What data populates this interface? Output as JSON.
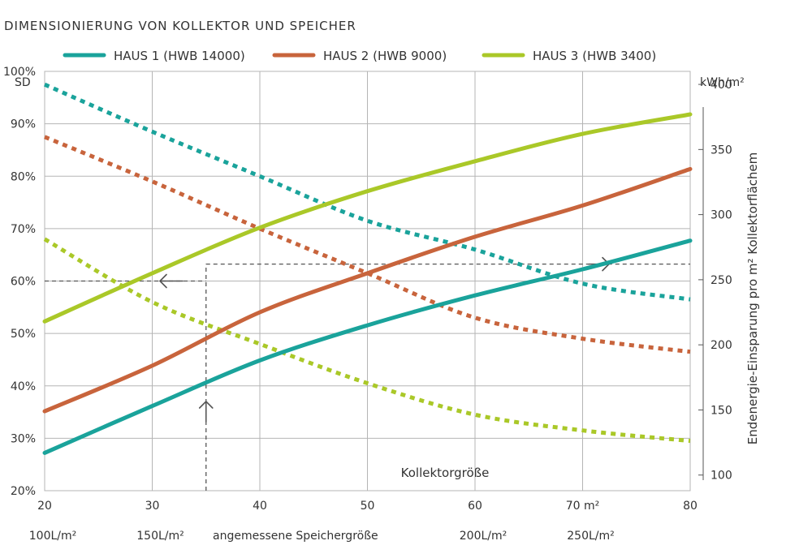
{
  "chart_data": {
    "type": "line",
    "title": "DIMENSIONIERUNG VON KOLLEKTOR UND SPEICHER",
    "x": [
      20,
      30,
      40,
      50,
      60,
      70,
      80
    ],
    "x_tick_labels": [
      "20",
      "30",
      "40",
      "50",
      "60",
      "70 m²",
      "80"
    ],
    "xlim": [
      20,
      80
    ],
    "xlabel": "Kollektorgröße",
    "x2_labels": [
      {
        "x": 20,
        "text": "100L/m²"
      },
      {
        "x": 30,
        "text": "150L/m²"
      },
      {
        "x": 40,
        "text": "angemessene Speichergröße"
      },
      {
        "x": 60,
        "text": "200L/m²"
      },
      {
        "x": 70,
        "text": "250L/m²"
      }
    ],
    "ylabel": "SD",
    "ylim": [
      20,
      100
    ],
    "y_ticks": [
      20,
      30,
      40,
      50,
      60,
      70,
      80,
      90,
      100
    ],
    "y_tick_labels": [
      "20%",
      "30%",
      "40%",
      "50%",
      "60%",
      "70%",
      "80%",
      "90%",
      "100%"
    ],
    "y2label_unit": "kWh/m²",
    "y2label": "Endenergie-Einsparung pro m² Kollektorflächem",
    "y2lim": [
      88,
      410
    ],
    "y2_ticks": [
      100,
      150,
      200,
      250,
      300,
      350,
      400
    ],
    "grid": true,
    "legend_position": "top",
    "series": [
      {
        "name": "HAUS 1 (HWB 14000)",
        "color": "#1aa39b",
        "axis": "y2",
        "style": "solid",
        "values": [
          117,
          153,
          188,
          215,
          238,
          258,
          280
        ]
      },
      {
        "name": "HAUS 2 (HWB 9000)",
        "color": "#c8643c",
        "axis": "y2",
        "style": "solid",
        "values": [
          149,
          184,
          225,
          255,
          283,
          307,
          335
        ]
      },
      {
        "name": "HAUS 3 (HWB 3400)",
        "color": "#aac828",
        "axis": "y2",
        "style": "solid",
        "values": [
          218,
          255,
          290,
          318,
          341,
          362,
          377
        ]
      },
      {
        "name": "HAUS 1 (HWB 14000)",
        "color": "#1aa39b",
        "axis": "y",
        "style": "dotted",
        "values": [
          97.5,
          88.5,
          80,
          71.5,
          66,
          59.5,
          56.5
        ]
      },
      {
        "name": "HAUS 2 (HWB 9000)",
        "color": "#c8643c",
        "axis": "y",
        "style": "dotted",
        "values": [
          87.5,
          79,
          70,
          61.5,
          53,
          49,
          46.5
        ]
      },
      {
        "name": "HAUS 3 (HWB 3400)",
        "color": "#aac828",
        "axis": "y",
        "style": "dotted",
        "values": [
          68,
          56,
          48,
          40.5,
          34.5,
          31.5,
          29.5
        ]
      }
    ],
    "annotation": {
      "x_start": 35,
      "sd_value": 60,
      "kwh_value": 262
    }
  }
}
